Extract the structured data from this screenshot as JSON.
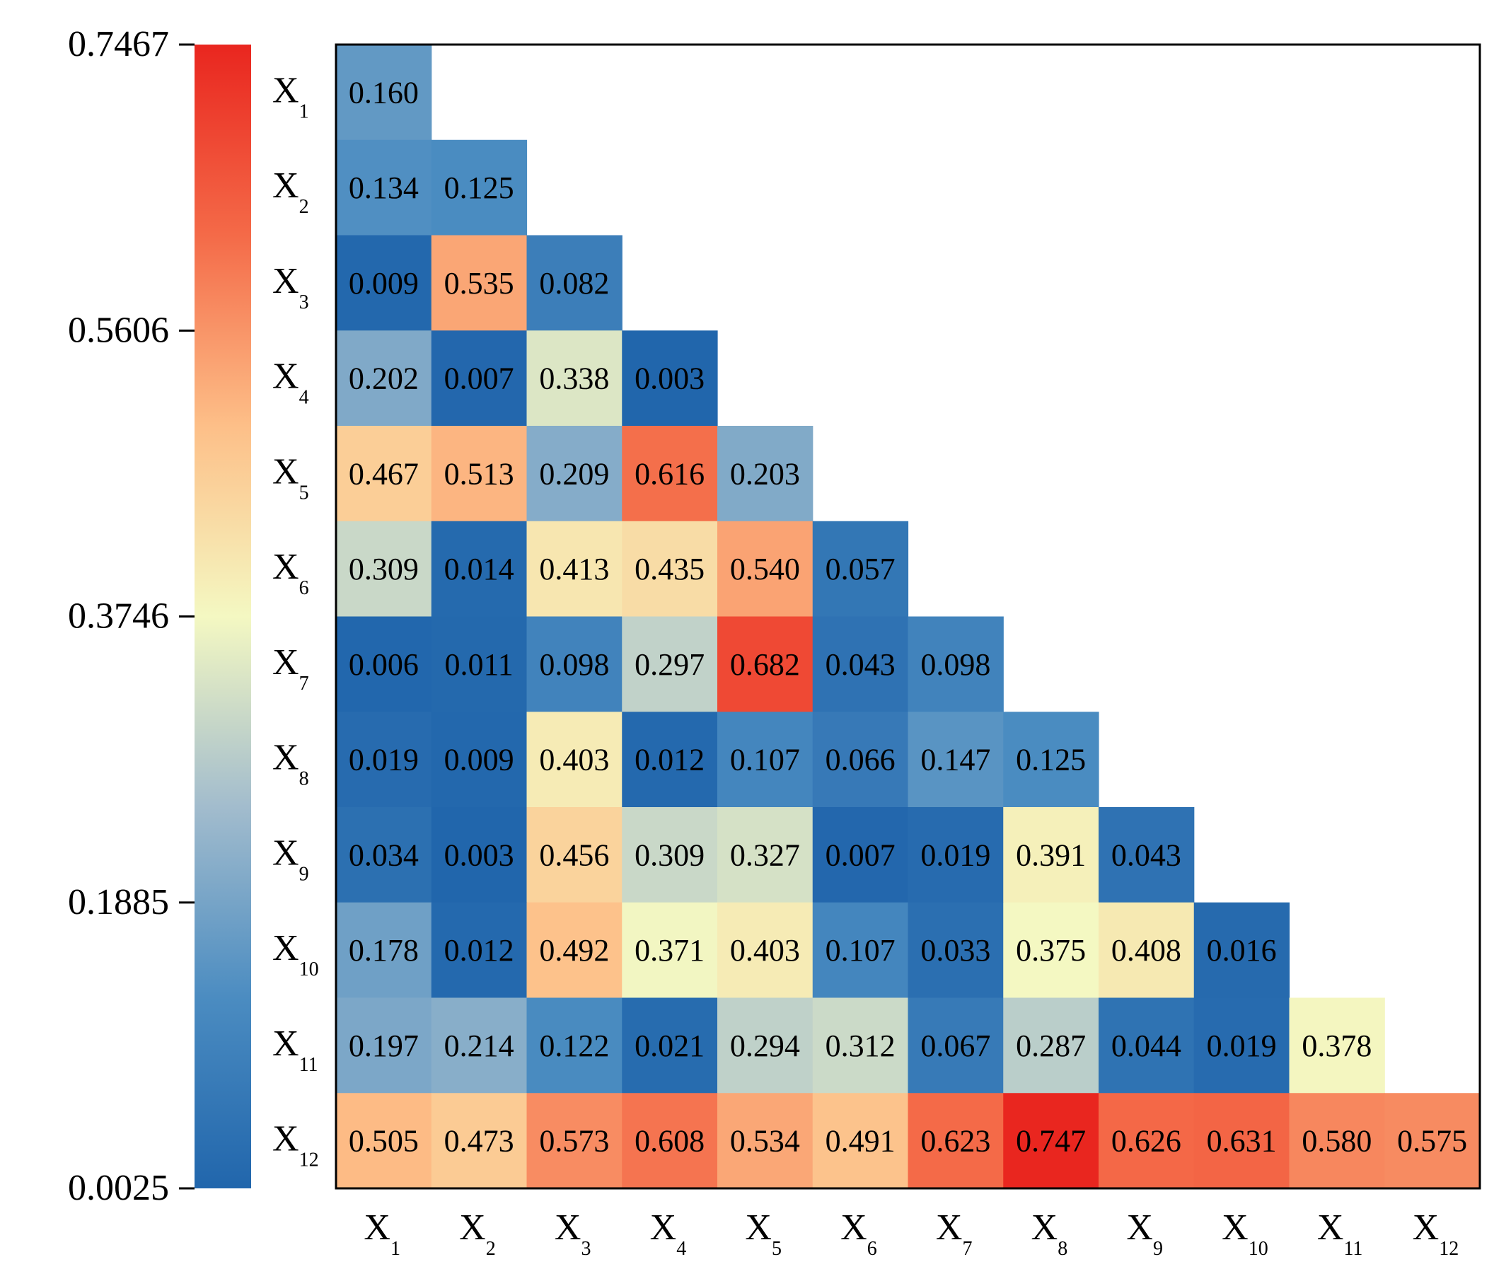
{
  "chart_data": {
    "type": "heatmap",
    "title": "",
    "xlabel": "",
    "ylabel": "",
    "variables": [
      {
        "base": "X",
        "sub": "1"
      },
      {
        "base": "X",
        "sub": "2"
      },
      {
        "base": "X",
        "sub": "3"
      },
      {
        "base": "X",
        "sub": "4"
      },
      {
        "base": "X",
        "sub": "5"
      },
      {
        "base": "X",
        "sub": "6"
      },
      {
        "base": "X",
        "sub": "7"
      },
      {
        "base": "X",
        "sub": "8"
      },
      {
        "base": "X",
        "sub": "9"
      },
      {
        "base": "X",
        "sub": "10"
      },
      {
        "base": "X",
        "sub": "11"
      },
      {
        "base": "X",
        "sub": "12"
      }
    ],
    "rows": [
      [
        "0.160"
      ],
      [
        "0.134",
        "0.125"
      ],
      [
        "0.009",
        "0.535",
        "0.082"
      ],
      [
        "0.202",
        "0.007",
        "0.338",
        "0.003"
      ],
      [
        "0.467",
        "0.513",
        "0.209",
        "0.616",
        "0.203"
      ],
      [
        "0.309",
        "0.014",
        "0.413",
        "0.435",
        "0.540",
        "0.057"
      ],
      [
        "0.006",
        "0.011",
        "0.098",
        "0.297",
        "0.682",
        "0.043",
        "0.098"
      ],
      [
        "0.019",
        "0.009",
        "0.403",
        "0.012",
        "0.107",
        "0.066",
        "0.147",
        "0.125"
      ],
      [
        "0.034",
        "0.003",
        "0.456",
        "0.309",
        "0.327",
        "0.007",
        "0.019",
        "0.391",
        "0.043"
      ],
      [
        "0.178",
        "0.012",
        "0.492",
        "0.371",
        "0.403",
        "0.107",
        "0.033",
        "0.375",
        "0.408",
        "0.016"
      ],
      [
        "0.197",
        "0.214",
        "0.122",
        "0.021",
        "0.294",
        "0.312",
        "0.067",
        "0.287",
        "0.044",
        "0.019",
        "0.378"
      ],
      [
        "0.505",
        "0.473",
        "0.573",
        "0.608",
        "0.534",
        "0.491",
        "0.623",
        "0.747",
        "0.626",
        "0.631",
        "0.580",
        "0.575"
      ]
    ],
    "colorbar": {
      "min": 0.0025,
      "max": 0.7467,
      "ticks": [
        "0.7467",
        "0.5606",
        "0.3746",
        "0.1885",
        "0.0025"
      ],
      "colormap": [
        "#2166ac",
        "#4b8cc1",
        "#a2bccd",
        "#f4f8c2",
        "#fdbf88",
        "#f46a48",
        "#e9261f"
      ]
    }
  }
}
